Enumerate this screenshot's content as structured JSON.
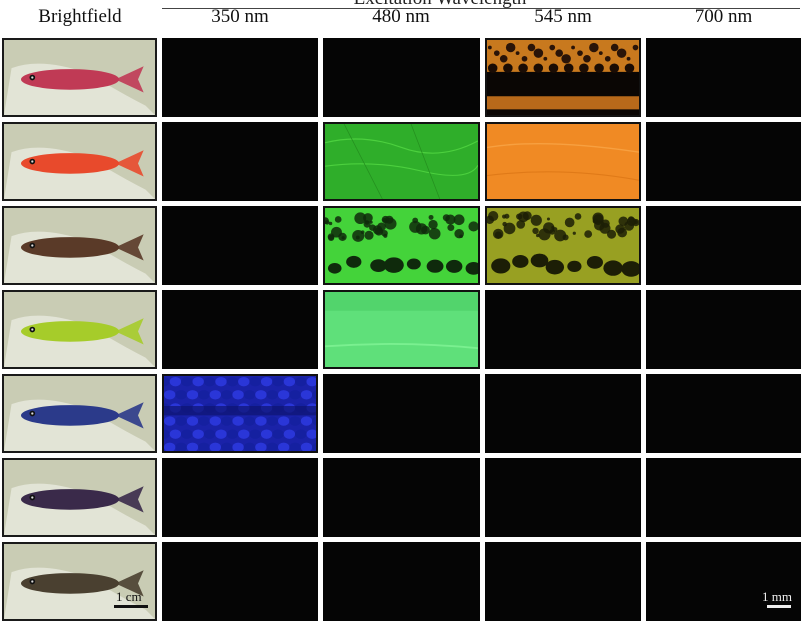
{
  "header": {
    "excitation_title": "Excitation Wavelength",
    "columns": [
      "Brightfield",
      "350 nm",
      "480 nm",
      "545 nm",
      "700 nm"
    ]
  },
  "rows": [
    {
      "fish_color": "#c03a55",
      "cells": [
        "dark",
        "dark",
        "orange-spots",
        "dark"
      ]
    },
    {
      "fish_color": "#e84a2c",
      "cells": [
        "dark",
        "green-smooth",
        "orange-smooth",
        "dark"
      ]
    },
    {
      "fish_color": "#5a3a28",
      "cells": [
        "dark",
        "green-spots",
        "olive-spots",
        "dark"
      ]
    },
    {
      "fish_color": "#a6cc2a",
      "cells": [
        "dark",
        "green-light",
        "dark",
        "dark"
      ]
    },
    {
      "fish_color": "#2b3a8a",
      "cells": [
        "blue-scale",
        "dark",
        "dark",
        "dark"
      ]
    },
    {
      "fish_color": "#3a2a4a",
      "cells": [
        "dark",
        "dark",
        "dark",
        "dark"
      ]
    },
    {
      "fish_color": "#4a4030",
      "cells": [
        "dark",
        "dark",
        "dark",
        "dark"
      ]
    }
  ],
  "scale": {
    "brightfield": "1 cm",
    "fluorescence": "1 mm"
  }
}
